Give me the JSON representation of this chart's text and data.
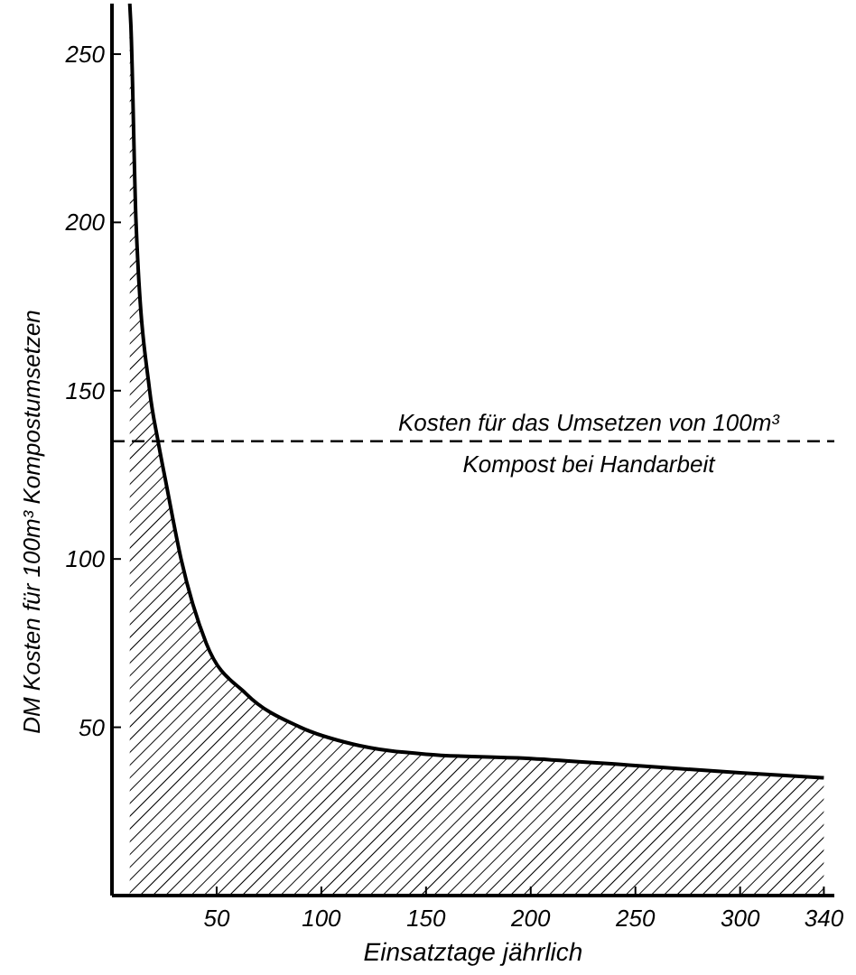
{
  "chart_data": {
    "type": "area",
    "xlabel": "Einsatztage jährlich",
    "ylabel": "DM Kosten für 100m³ Kompostumsetzen",
    "x": [
      8.5,
      9,
      11.5,
      18,
      22,
      26,
      33,
      45,
      64,
      90,
      115,
      150,
      200,
      250,
      300,
      340
    ],
    "series": [
      {
        "color": "#000000",
        "values": [
          265,
          259,
          200,
          150,
          135,
          122,
          100,
          75,
          60,
          50,
          45,
          42,
          40.7,
          38.6,
          36.5,
          35
        ]
      }
    ],
    "xlim": [
      0,
      345
    ],
    "ylim": [
      0,
      265
    ],
    "xticks": [
      50,
      100,
      150,
      200,
      250,
      300,
      340
    ],
    "yticks": [
      50,
      100,
      150,
      200,
      250
    ],
    "ref_lines": [
      {
        "axis": "y",
        "value": 135,
        "label": "Kosten für das Umsetzen von 100m³ Kompost bei Handarbeit",
        "line_style": "dashed",
        "color": "#000000"
      }
    ],
    "grid": false
  }
}
